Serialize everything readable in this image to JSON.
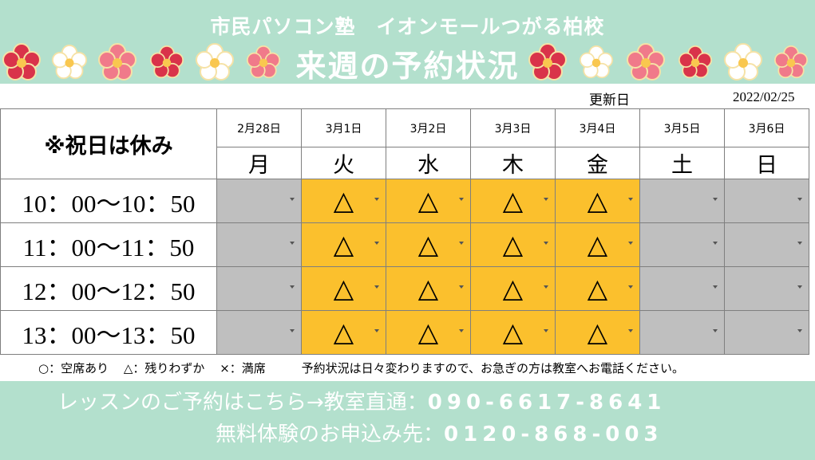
{
  "header": {
    "school": "市民パソコン塾　イオンモールつがる柏校",
    "title": "来週の予約状況"
  },
  "updated": {
    "label": "更新日",
    "date": "2022/02/25"
  },
  "table": {
    "corner": "※祝日は休み",
    "dates": [
      "2月28日",
      "3月1日",
      "3月2日",
      "3月3日",
      "3月4日",
      "3月5日",
      "3月6日"
    ],
    "days": [
      "月",
      "火",
      "水",
      "木",
      "金",
      "土",
      "日"
    ],
    "rows": [
      {
        "time": "10：00〜10：50",
        "cells": [
          "",
          "△",
          "△",
          "△",
          "△",
          "",
          ""
        ]
      },
      {
        "time": "11：00〜11：50",
        "cells": [
          "",
          "△",
          "△",
          "△",
          "△",
          "",
          ""
        ]
      },
      {
        "time": "12：00〜12：50",
        "cells": [
          "",
          "△",
          "△",
          "△",
          "△",
          "",
          ""
        ]
      },
      {
        "time": "13：00〜13：50",
        "cells": [
          "",
          "△",
          "△",
          "△",
          "△",
          "",
          ""
        ]
      }
    ],
    "open_days": [
      false,
      true,
      true,
      true,
      true,
      false,
      false
    ]
  },
  "legend": {
    "available": "○：空席あり",
    "few": "△：残りわずか",
    "full": "×：満席",
    "note": "予約状況は日々変わりますので、お急ぎの方は教室へお電話ください。"
  },
  "footer": {
    "line1_label": "レッスンのご予約はこちら→教室直通：",
    "line1_number": "090-6617-8641",
    "line2_label": "無料体験のお申込み先：",
    "line2_number": "0120-868-003"
  },
  "colors": {
    "mint": "#b3e0cd",
    "open": "#fbc02d",
    "closed": "#bfbfbf",
    "flower_red": "#d9334a",
    "flower_pink": "#f07a8a"
  }
}
